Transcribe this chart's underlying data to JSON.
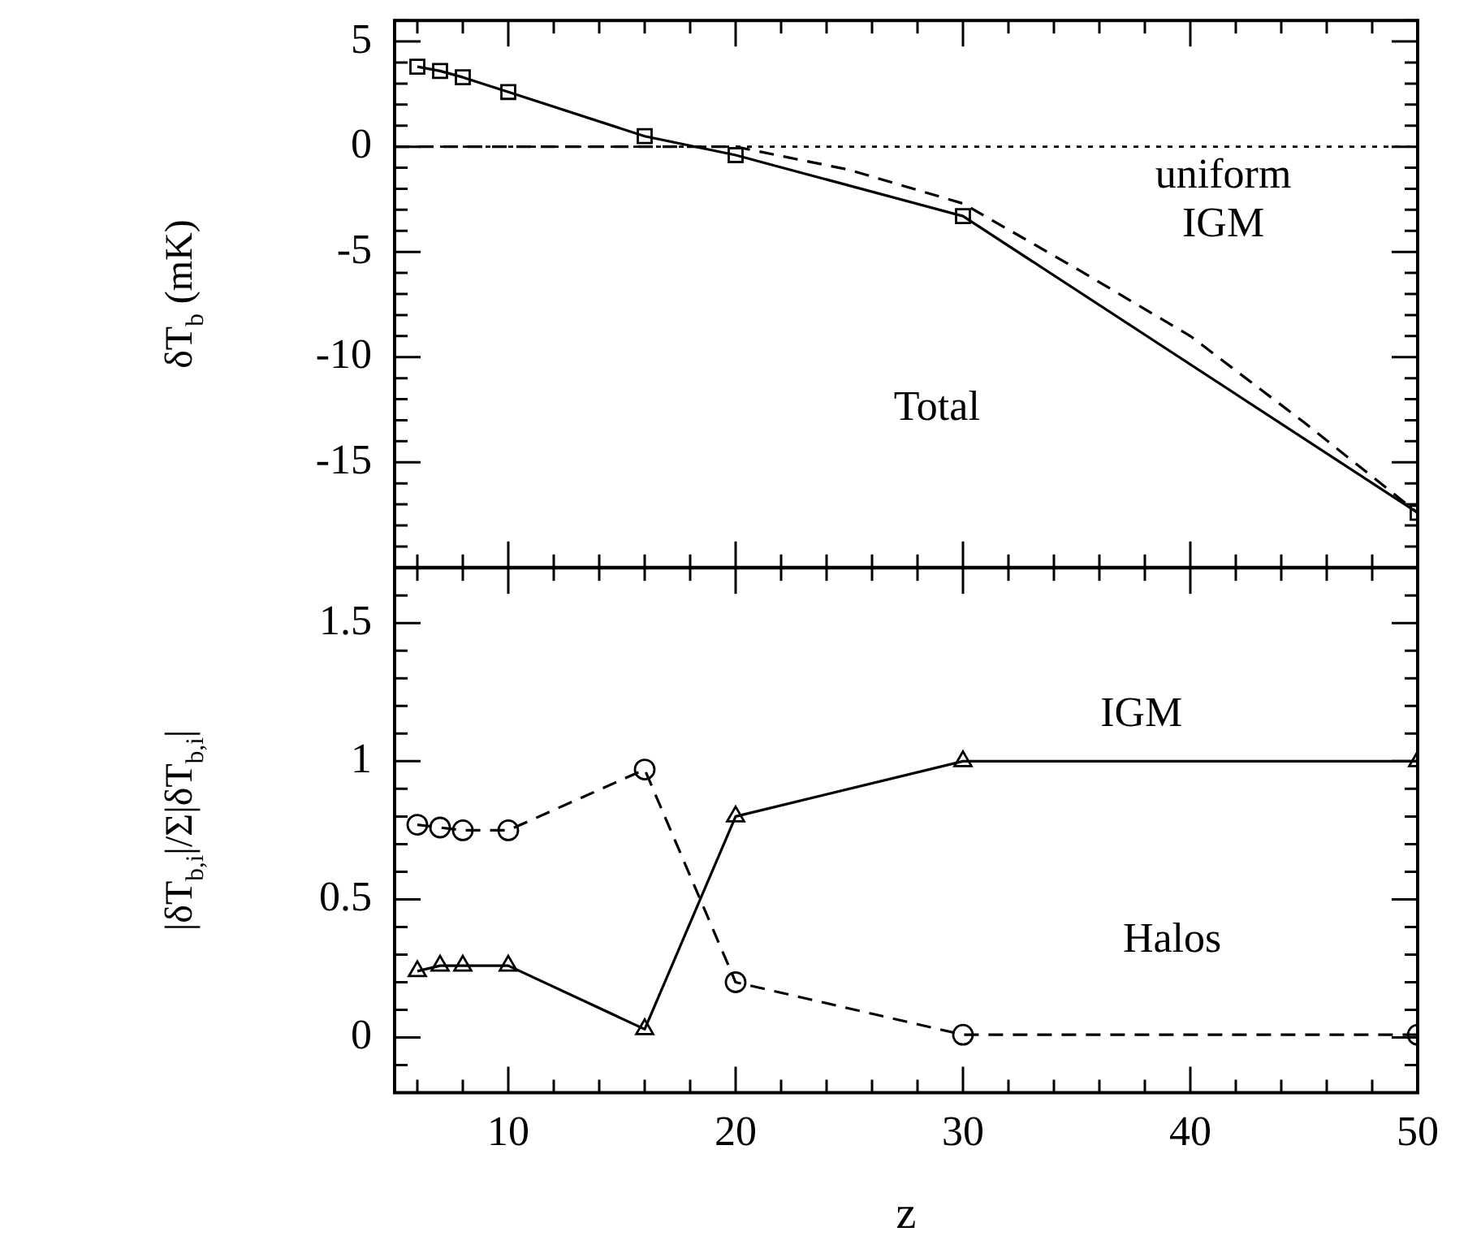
{
  "chart_data": [
    {
      "type": "line",
      "ylabel": "δT$_{b}$ (mK)",
      "xlim": [
        5,
        50
      ],
      "ylim": [
        -20,
        6
      ],
      "xticks": [
        {
          "value": 6,
          "label": null
        },
        {
          "value": 8,
          "label": null
        },
        10,
        {
          "value": 12,
          "label": null
        },
        {
          "value": 14,
          "label": null
        },
        {
          "value": 16,
          "label": null
        },
        {
          "value": 18,
          "label": null
        },
        20,
        {
          "value": 22,
          "label": null
        },
        {
          "value": 24,
          "label": null
        },
        {
          "value": 26,
          "label": null
        },
        {
          "value": 28,
          "label": null
        },
        30,
        {
          "value": 32,
          "label": null
        },
        {
          "value": 34,
          "label": null
        },
        {
          "value": 36,
          "label": null
        },
        {
          "value": 38,
          "label": null
        },
        40,
        {
          "value": 42,
          "label": null
        },
        {
          "value": 44,
          "label": null
        },
        {
          "value": 46,
          "label": null
        },
        {
          "value": 48,
          "label": null
        },
        50
      ],
      "yticks": [
        {
          "value": -20,
          "label": null
        },
        {
          "value": -19,
          "label": null
        },
        {
          "value": -18,
          "label": null
        },
        {
          "value": -17,
          "label": null
        },
        {
          "value": -16,
          "label": null
        },
        -15,
        {
          "value": -14,
          "label": null
        },
        {
          "value": -13,
          "label": null
        },
        {
          "value": -12,
          "label": null
        },
        {
          "value": -11,
          "label": null
        },
        -10,
        {
          "value": -9,
          "label": null
        },
        {
          "value": -8,
          "label": null
        },
        {
          "value": -7,
          "label": null
        },
        {
          "value": -6,
          "label": null
        },
        -5,
        {
          "value": -4,
          "label": null
        },
        {
          "value": -3,
          "label": null
        },
        {
          "value": -2,
          "label": null
        },
        {
          "value": -1,
          "label": null
        },
        0,
        {
          "value": 1,
          "label": null
        },
        {
          "value": 2,
          "label": null
        },
        {
          "value": 3,
          "label": null
        },
        {
          "value": 4,
          "label": null
        },
        5,
        {
          "value": 6,
          "label": null
        }
      ],
      "tick_labels": "y",
      "series": [
        {
          "color": "#000000",
          "marker": "square",
          "line_style": "solid",
          "x": [
            6,
            7,
            8,
            10,
            16,
            20,
            30,
            50
          ],
          "values": [
            3.8,
            3.6,
            3.3,
            2.6,
            0.5,
            -0.4,
            -3.3,
            -17.4
          ]
        },
        {
          "color": "#000000",
          "marker": "none",
          "line_style": "dashed",
          "x": [
            5,
            20,
            25,
            30,
            35,
            40,
            45,
            50
          ],
          "values": [
            0,
            0,
            -1.1,
            -2.7,
            -5.8,
            -9.0,
            -13.1,
            -17.4
          ]
        }
      ],
      "ref_lines": [
        {
          "axis": "y",
          "value": 0,
          "line_style": "dotted",
          "color": "#000000"
        }
      ],
      "annotations": [
        "Total",
        "uniform IGM"
      ]
    },
    {
      "type": "line",
      "ylabel": "|δT$_{b,i}$|/Σ|δT$_{b,i}$|",
      "xlabel": "z",
      "xlim": [
        5,
        50
      ],
      "ylim": [
        -0.2,
        1.7
      ],
      "xticks": [
        {
          "value": 6,
          "label": null
        },
        {
          "value": 8,
          "label": null
        },
        10,
        {
          "value": 12,
          "label": null
        },
        {
          "value": 14,
          "label": null
        },
        {
          "value": 16,
          "label": null
        },
        {
          "value": 18,
          "label": null
        },
        20,
        {
          "value": 22,
          "label": null
        },
        {
          "value": 24,
          "label": null
        },
        {
          "value": 26,
          "label": null
        },
        {
          "value": 28,
          "label": null
        },
        30,
        {
          "value": 32,
          "label": null
        },
        {
          "value": 34,
          "label": null
        },
        {
          "value": 36,
          "label": null
        },
        {
          "value": 38,
          "label": null
        },
        40,
        {
          "value": 42,
          "label": null
        },
        {
          "value": 44,
          "label": null
        },
        {
          "value": 46,
          "label": null
        },
        {
          "value": 48,
          "label": null
        },
        50
      ],
      "yticks": [
        {
          "value": -0.2,
          "label": null
        },
        {
          "value": -0.1,
          "label": null
        },
        0,
        {
          "value": 0.1,
          "label": null
        },
        {
          "value": 0.2,
          "label": null
        },
        {
          "value": 0.3,
          "label": null
        },
        {
          "value": 0.4,
          "label": null
        },
        0.5,
        {
          "value": 0.6,
          "label": null
        },
        {
          "value": 0.7,
          "label": null
        },
        {
          "value": 0.8,
          "label": null
        },
        {
          "value": 0.9,
          "label": null
        },
        1,
        {
          "value": 1.1,
          "label": null
        },
        {
          "value": 1.2,
          "label": null
        },
        {
          "value": 1.3,
          "label": null
        },
        {
          "value": 1.4,
          "label": null
        },
        1.5,
        {
          "value": 1.6,
          "label": null
        },
        {
          "value": 1.7,
          "label": null
        }
      ],
      "series": [
        {
          "color": "#000000",
          "marker": "circle",
          "line_style": "dashed",
          "x": [
            6,
            7,
            8,
            10,
            16,
            20,
            30,
            50
          ],
          "values": [
            0.77,
            0.76,
            0.75,
            0.75,
            0.97,
            0.2,
            0.01,
            0.01
          ]
        },
        {
          "color": "#000000",
          "marker": "triangle",
          "line_style": "solid",
          "x": [
            6,
            7,
            8,
            10,
            16,
            20,
            30,
            50
          ],
          "values": [
            0.24,
            0.26,
            0.26,
            0.26,
            0.03,
            0.8,
            1.0,
            1.0
          ]
        }
      ],
      "annotations": [
        "IGM",
        "Halos"
      ]
    }
  ]
}
